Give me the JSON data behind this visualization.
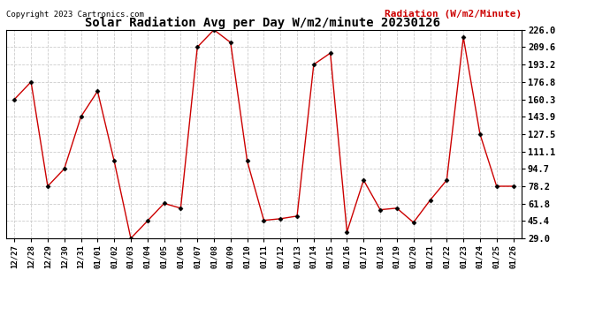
{
  "title": "Solar Radiation Avg per Day W/m2/minute 20230126",
  "copyright": "Copyright 2023 Cartronics.com",
  "legend_label": "Radiation (W/m2/Minute)",
  "background_color": "#ffffff",
  "plot_bg_color": "#ffffff",
  "grid_color": "#cccccc",
  "line_color": "#cc0000",
  "marker_color": "#000000",
  "dates": [
    "12/27",
    "12/28",
    "12/29",
    "12/30",
    "12/31",
    "01/01",
    "01/02",
    "01/03",
    "01/04",
    "01/05",
    "01/06",
    "01/07",
    "01/08",
    "01/09",
    "01/10",
    "01/11",
    "01/12",
    "01/13",
    "01/14",
    "01/15",
    "01/16",
    "01/17",
    "01/18",
    "01/19",
    "01/20",
    "01/21",
    "01/22",
    "01/23",
    "01/24",
    "01/25",
    "01/26"
  ],
  "values": [
    160.3,
    176.8,
    78.2,
    94.7,
    143.9,
    168.0,
    102.0,
    29.0,
    45.4,
    62.0,
    57.5,
    209.6,
    226.0,
    214.0,
    102.0,
    46.0,
    47.5,
    50.0,
    193.2,
    204.0,
    35.0,
    84.0,
    56.0,
    57.5,
    44.0,
    65.0,
    84.0,
    219.0,
    127.5,
    78.2,
    78.2
  ],
  "ylim": [
    29.0,
    226.0
  ],
  "yticks": [
    29.0,
    45.4,
    61.8,
    78.2,
    94.7,
    111.1,
    127.5,
    143.9,
    160.3,
    176.8,
    193.2,
    209.6,
    226.0
  ],
  "ytick_labels": [
    "29.0",
    "45.4",
    "61.8",
    "78.2",
    "94.7",
    "111.1",
    "127.5",
    "143.9",
    "160.3",
    "176.8",
    "193.2",
    "209.6",
    "226.0"
  ]
}
